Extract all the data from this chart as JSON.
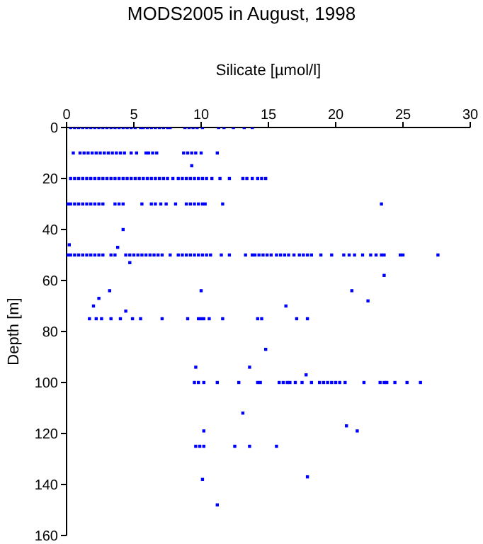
{
  "chart_data": {
    "type": "scatter",
    "title": "MODS2005 in August, 1998",
    "xlabel": "Silicate [µmol/l]",
    "ylabel": "Depth [m]",
    "marker": "square",
    "xlim": [
      0,
      30
    ],
    "xticks": [
      0,
      5,
      10,
      15,
      20,
      25,
      30
    ],
    "ylim": [
      160,
      0
    ],
    "yticks": [
      0,
      20,
      40,
      60,
      80,
      100,
      120,
      140,
      160
    ],
    "series": [
      {
        "color": "#0000ff",
        "x": [
          0.3,
          0.6,
          0.9,
          1.2,
          1.5,
          1.8,
          2.1,
          2.4,
          2.7,
          3.0,
          3.3,
          3.6,
          3.9,
          4.2,
          4.5,
          4.8,
          5.1,
          5.5,
          5.7,
          6.0,
          6.3,
          6.6,
          6.9,
          7.2,
          7.5,
          7.7,
          8.8,
          9.1,
          9.4,
          9.7,
          10.1,
          11.3,
          11.7,
          12.4,
          13.2,
          13.8,
          0.5,
          1.0,
          1.3,
          1.6,
          1.9,
          2.2,
          2.5,
          2.8,
          3.1,
          3.4,
          3.7,
          4.0,
          4.3,
          4.8,
          5.2,
          5.9,
          6.1,
          6.4,
          6.7,
          8.7,
          9.0,
          9.3,
          9.6,
          10.0,
          11.2,
          9.3,
          0.3,
          0.6,
          0.9,
          1.2,
          1.5,
          1.8,
          2.1,
          2.4,
          2.7,
          3.0,
          3.3,
          3.6,
          3.9,
          4.2,
          4.5,
          4.8,
          5.1,
          5.4,
          5.7,
          6.0,
          6.3,
          6.6,
          6.9,
          7.2,
          7.5,
          7.9,
          8.3,
          8.6,
          8.9,
          9.2,
          9.5,
          9.8,
          10.1,
          10.4,
          10.8,
          11.4,
          12.1,
          13.1,
          13.4,
          13.8,
          14.2,
          14.5,
          14.8,
          0.1,
          0.3,
          0.6,
          0.9,
          1.2,
          1.5,
          1.8,
          2.1,
          2.4,
          2.7,
          3.6,
          3.9,
          4.2,
          5.6,
          6.3,
          6.6,
          7.0,
          7.4,
          8.1,
          8.9,
          9.2,
          9.5,
          9.8,
          10.1,
          10.3,
          11.6,
          23.4,
          0.2,
          4.2,
          3.8,
          0.1,
          0.3,
          0.6,
          0.9,
          1.2,
          1.5,
          1.8,
          2.1,
          2.4,
          2.7,
          3.3,
          3.6,
          4.4,
          4.7,
          5.0,
          5.3,
          5.6,
          5.9,
          6.2,
          6.5,
          6.8,
          7.1,
          7.7,
          8.3,
          8.6,
          8.9,
          9.2,
          9.5,
          9.8,
          10.1,
          10.4,
          10.7,
          11.5,
          12.1,
          13.3,
          13.8,
          14.0,
          14.3,
          14.6,
          14.9,
          15.2,
          15.6,
          15.9,
          16.2,
          16.5,
          16.9,
          17.3,
          17.6,
          17.9,
          18.2,
          18.9,
          19.7,
          20.6,
          21.0,
          21.4,
          22.0,
          22.6,
          23.0,
          23.4,
          23.6,
          24.8,
          25.0,
          27.6,
          4.7,
          23.6,
          3.2,
          10.0,
          21.2,
          2.4,
          22.4,
          2.0,
          16.3,
          4.4,
          1.7,
          2.2,
          2.6,
          3.3,
          4.0,
          4.9,
          5.5,
          7.1,
          9.0,
          9.8,
          10.0,
          10.2,
          10.6,
          11.6,
          14.2,
          14.5,
          17.1,
          17.9,
          14.8,
          9.6,
          13.6,
          17.8,
          9.5,
          9.8,
          10.2,
          11.2,
          12.8,
          14.2,
          14.4,
          15.8,
          16.1,
          16.4,
          16.6,
          17.0,
          17.5,
          18.2,
          18.8,
          19.1,
          19.4,
          19.7,
          20.0,
          20.3,
          20.7,
          22.1,
          23.3,
          23.6,
          23.8,
          24.4,
          25.3,
          26.3,
          13.1,
          20.8,
          10.2,
          21.6,
          9.6,
          9.9,
          10.2,
          12.5,
          13.6,
          15.6,
          10.1,
          17.9,
          11.2
        ],
        "values": [
          0,
          0,
          0,
          0,
          0,
          0,
          0,
          0,
          0,
          0,
          0,
          0,
          0,
          0,
          0,
          0,
          0,
          0,
          0,
          0,
          0,
          0,
          0,
          0,
          0,
          0,
          0,
          0,
          0,
          0,
          0,
          0,
          0,
          0,
          0,
          0,
          10,
          10,
          10,
          10,
          10,
          10,
          10,
          10,
          10,
          10,
          10,
          10,
          10,
          10,
          10,
          10,
          10,
          10,
          10,
          10,
          10,
          10,
          10,
          10,
          10,
          15,
          20,
          20,
          20,
          20,
          20,
          20,
          20,
          20,
          20,
          20,
          20,
          20,
          20,
          20,
          20,
          20,
          20,
          20,
          20,
          20,
          20,
          20,
          20,
          20,
          20,
          20,
          20,
          20,
          20,
          20,
          20,
          20,
          20,
          20,
          20,
          20,
          20,
          20,
          20,
          20,
          20,
          20,
          20,
          30,
          30,
          30,
          30,
          30,
          30,
          30,
          30,
          30,
          30,
          30,
          30,
          30,
          30,
          30,
          30,
          30,
          30,
          30,
          30,
          30,
          30,
          30,
          30,
          30,
          30,
          30,
          46,
          40,
          47,
          50,
          50,
          50,
          50,
          50,
          50,
          50,
          50,
          50,
          50,
          50,
          50,
          50,
          50,
          50,
          50,
          50,
          50,
          50,
          50,
          50,
          50,
          50,
          50,
          50,
          50,
          50,
          50,
          50,
          50,
          50,
          50,
          50,
          50,
          50,
          50,
          50,
          50,
          50,
          50,
          50,
          50,
          50,
          50,
          50,
          50,
          50,
          50,
          50,
          50,
          50,
          50,
          50,
          50,
          50,
          50,
          50,
          50,
          50,
          50,
          50,
          50,
          50,
          53,
          58,
          64,
          64,
          64,
          67,
          68,
          70,
          70,
          72,
          75,
          75,
          75,
          75,
          75,
          75,
          75,
          75,
          75,
          75,
          75,
          75,
          75,
          75,
          75,
          75,
          75,
          75,
          87,
          94,
          94,
          97,
          100,
          100,
          100,
          100,
          100,
          100,
          100,
          100,
          100,
          100,
          100,
          100,
          100,
          100,
          100,
          100,
          100,
          100,
          100,
          100,
          100,
          100,
          100,
          100,
          100,
          100,
          100,
          100,
          112,
          117,
          119,
          119,
          125,
          125,
          125,
          125,
          125,
          125,
          138,
          137,
          148
        ]
      }
    ]
  }
}
